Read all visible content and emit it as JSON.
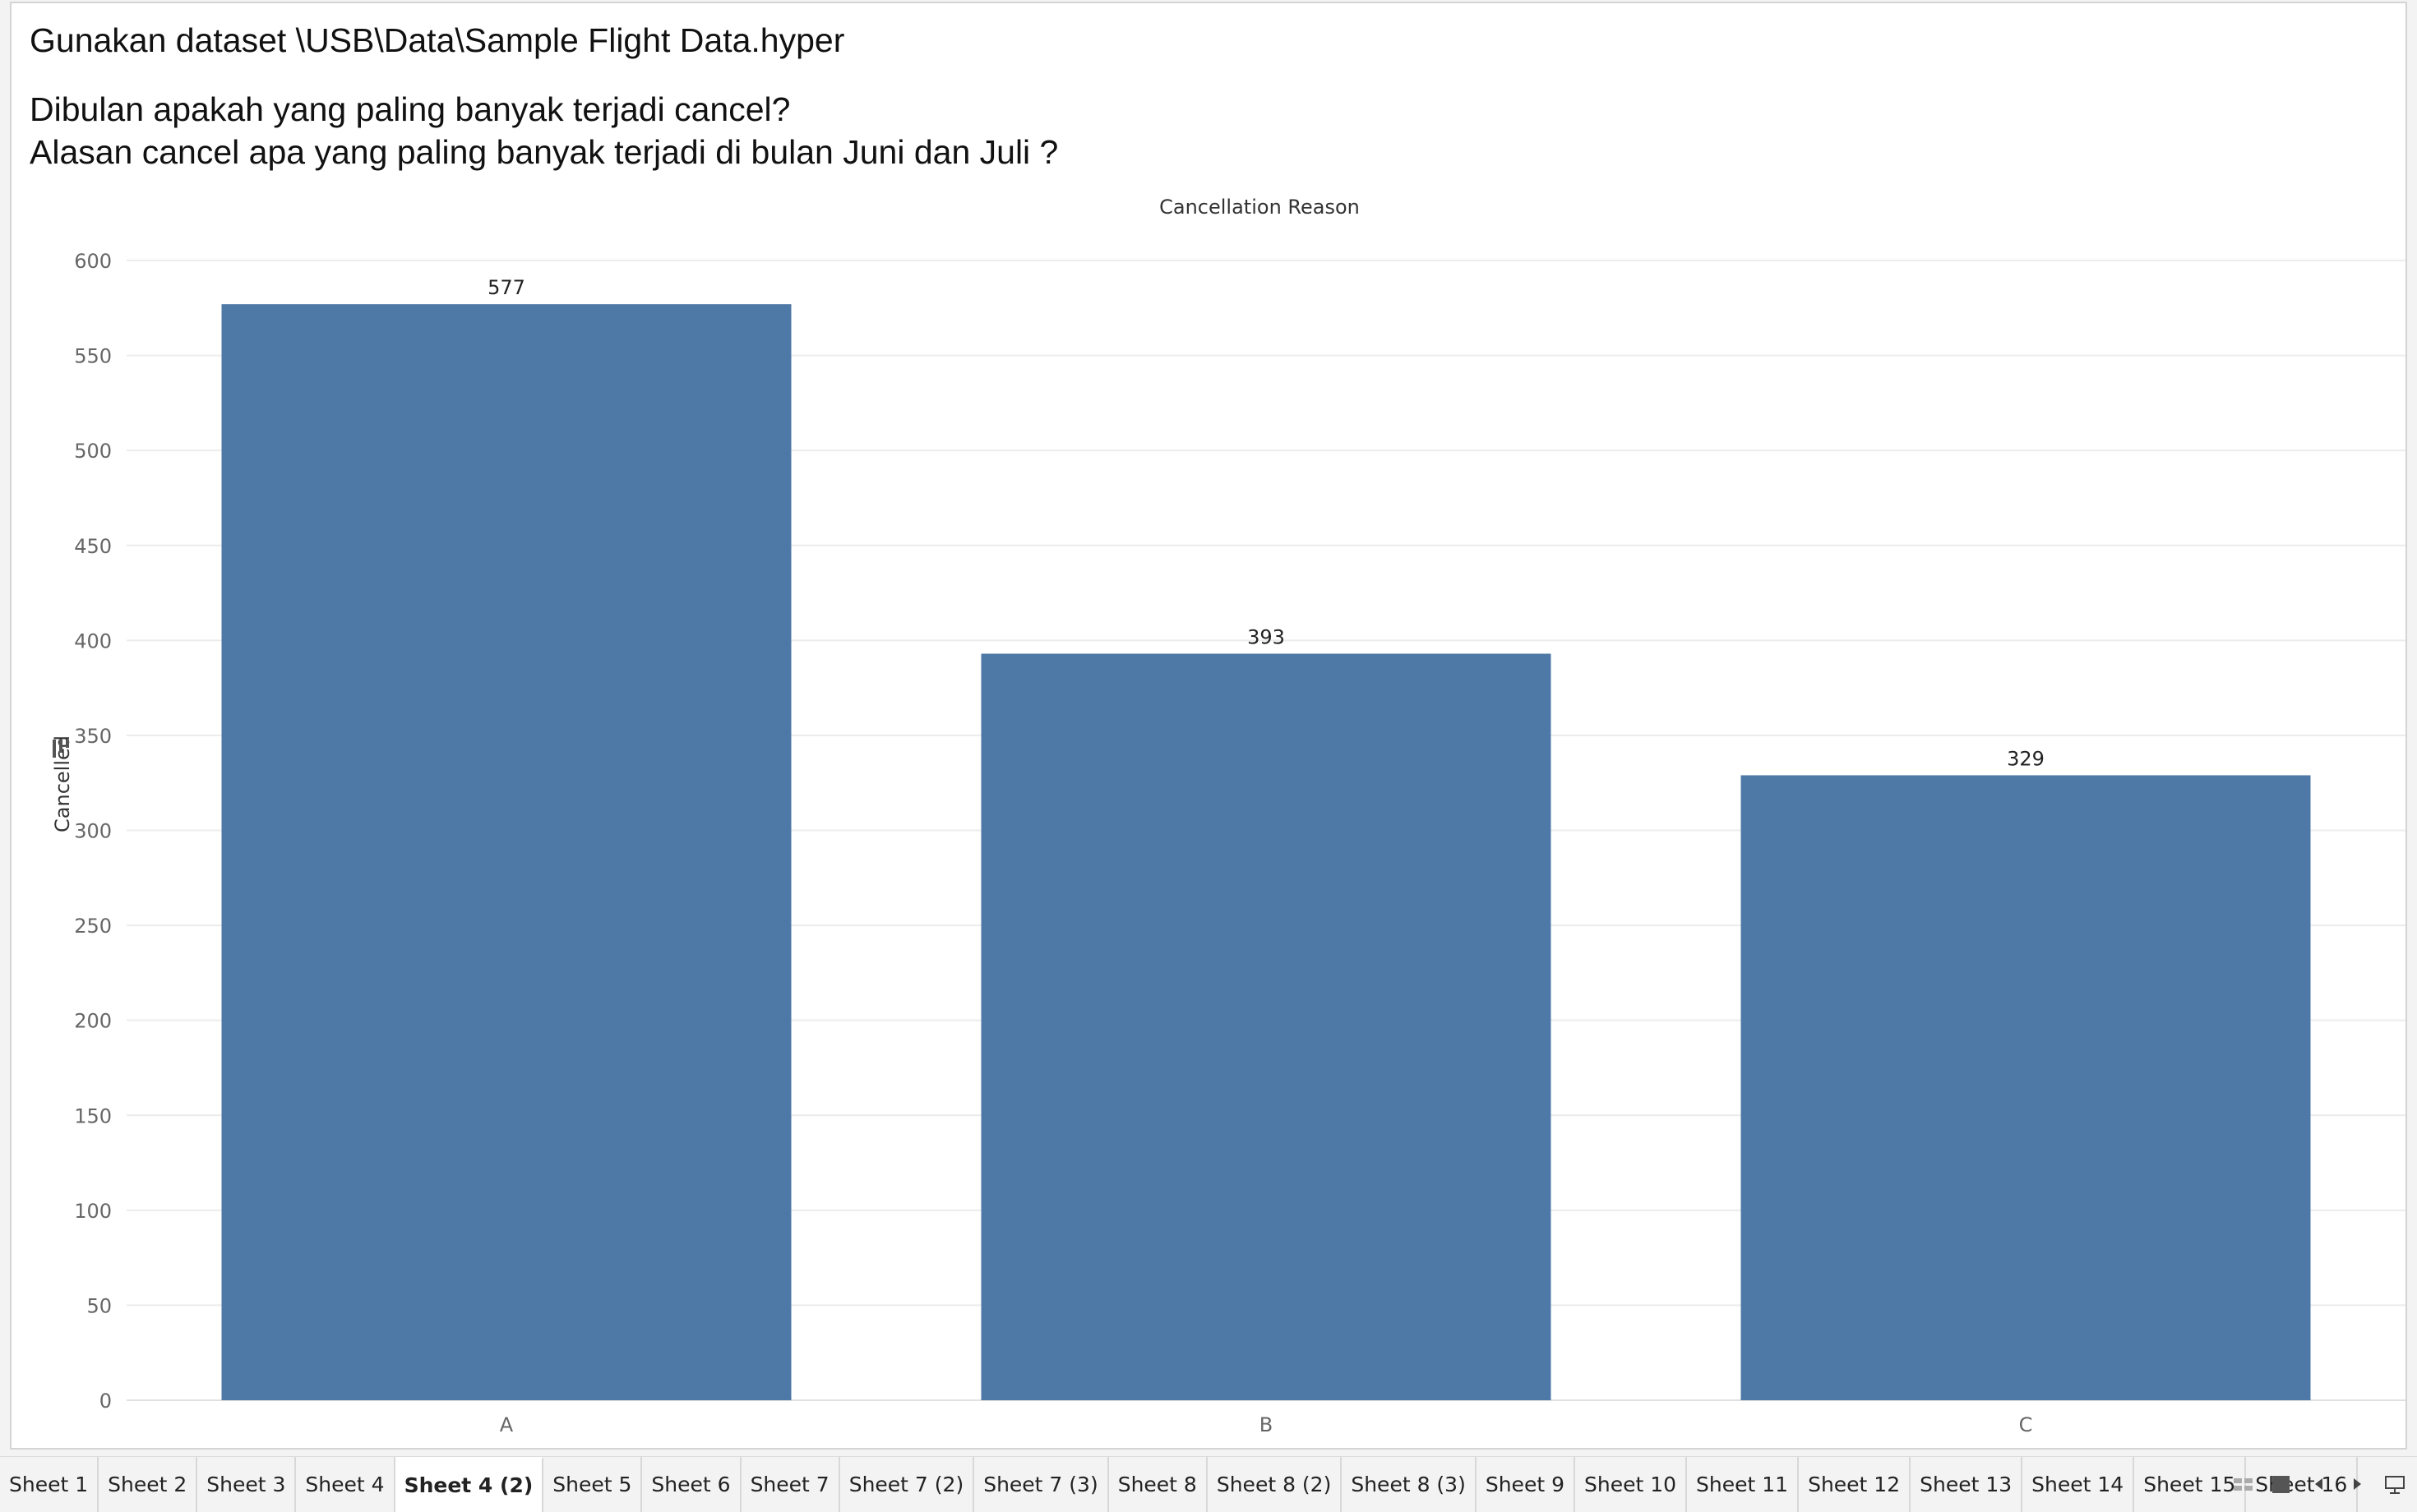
{
  "caption": {
    "line1": "Gunakan dataset \\USB\\Data\\Sample Flight Data.hyper",
    "line2": "Dibulan apakah yang paling banyak terjadi cancel?",
    "line3": "Alasan cancel apa yang paling banyak terjadi di bulan Juni dan Juli ?"
  },
  "chart_data": {
    "type": "bar",
    "title": "Cancellation Reason",
    "xlabel": "",
    "ylabel": "Cancelled",
    "categories": [
      "A",
      "B",
      "C"
    ],
    "values": [
      577,
      393,
      329
    ],
    "data_labels": [
      "577",
      "393",
      "329"
    ],
    "ylim": [
      0,
      600
    ],
    "yticks": [
      0,
      50,
      100,
      150,
      200,
      250,
      300,
      350,
      400,
      450,
      500,
      550,
      600
    ],
    "grid": true,
    "bar_color": "#4e79a7",
    "legend": "none"
  },
  "tabs": [
    {
      "label": "Sheet 1",
      "active": false
    },
    {
      "label": "Sheet 2",
      "active": false
    },
    {
      "label": "Sheet 3",
      "active": false
    },
    {
      "label": "Sheet 4",
      "active": false
    },
    {
      "label": "Sheet 4 (2)",
      "active": true
    },
    {
      "label": "Sheet 5",
      "active": false
    },
    {
      "label": "Sheet 6",
      "active": false
    },
    {
      "label": "Sheet 7",
      "active": false
    },
    {
      "label": "Sheet 7 (2)",
      "active": false
    },
    {
      "label": "Sheet 7 (3)",
      "active": false
    },
    {
      "label": "Sheet 8",
      "active": false
    },
    {
      "label": "Sheet 8 (2)",
      "active": false
    },
    {
      "label": "Sheet 8 (3)",
      "active": false
    },
    {
      "label": "Sheet 9",
      "active": false
    },
    {
      "label": "Sheet 10",
      "active": false
    },
    {
      "label": "Sheet 11",
      "active": false
    },
    {
      "label": "Sheet 12",
      "active": false
    },
    {
      "label": "Sheet 13",
      "active": false
    },
    {
      "label": "Sheet 14",
      "active": false
    },
    {
      "label": "Sheet 15",
      "active": false
    },
    {
      "label": "Sheet 16",
      "active": false
    }
  ],
  "tab_controls": [
    {
      "name": "show-filmstrip-icon"
    },
    {
      "name": "show-tabs-icon"
    },
    {
      "name": "scroll-left-icon"
    },
    {
      "name": "scroll-right-icon"
    },
    {
      "name": "presentation-mode-icon"
    }
  ]
}
